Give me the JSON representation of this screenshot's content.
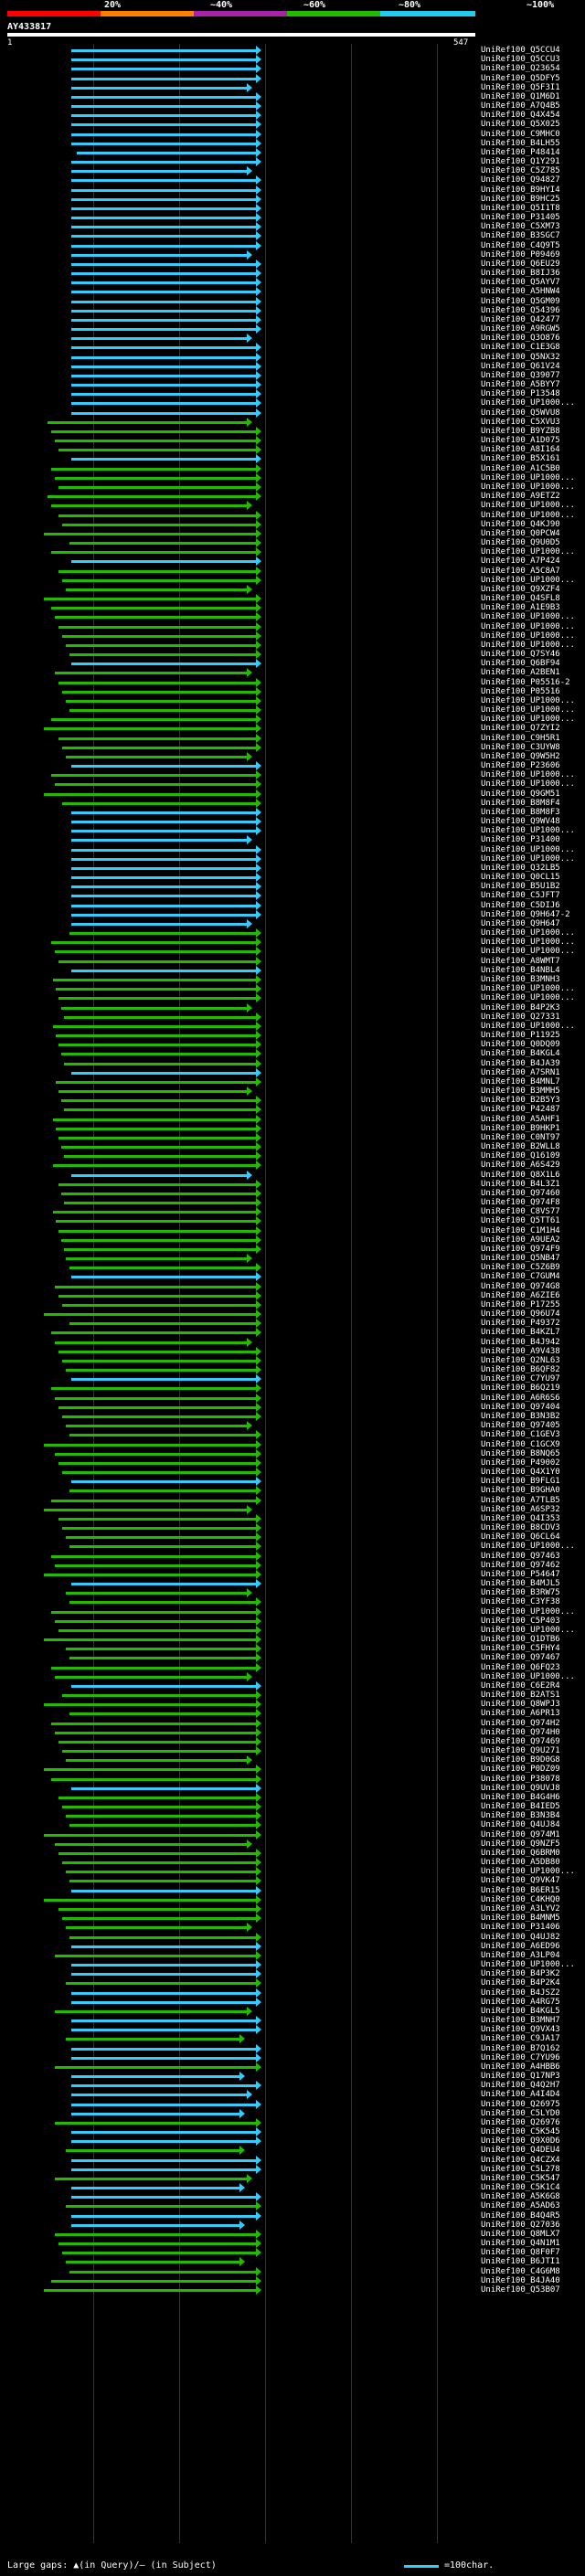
{
  "scale": {
    "labels": [
      "20%",
      "~40%",
      "~60%",
      "~80%",
      "~100%"
    ],
    "segment_colors": [
      "#ff0000",
      "#ff8000",
      "#aa22aa",
      "#22bb00",
      "#22ccee"
    ]
  },
  "query": {
    "name": "AY433817",
    "start": "1",
    "end": "547"
  },
  "colors": {
    "blue": "#33ccff",
    "green": "#22bb00",
    "grid": "#333333"
  },
  "hits": [
    "UniRef100_Q5CCU4",
    "UniRef100_Q5CCU3",
    "UniRef100_Q23654",
    "UniRef100_Q5DFY5",
    "UniRef100_Q5F3I1",
    "UniRef100_Q1M6D1",
    "UniRef100_A7Q4B5",
    "UniRef100_Q4X454",
    "UniRef100_Q5X025",
    "UniRef100_C9MHC0",
    "UniRef100_B4LH55",
    "UniRef100_P48414",
    "UniRef100_Q1Y291",
    "UniRef100_C5Z785",
    "UniRef100_Q94827",
    "UniRef100_B9HYI4",
    "UniRef100_B9HC25",
    "UniRef100_Q5I1T8",
    "UniRef100_P31405",
    "UniRef100_C5XM73",
    "UniRef100_B3SGC7",
    "UniRef100_C4Q9T5",
    "UniRef100_P09469",
    "UniRef100_Q6EU29",
    "UniRef100_B8IJ36",
    "UniRef100_Q5AYV7",
    "UniRef100_A5HNW4",
    "UniRef100_Q5GM09",
    "UniRef100_Q54396",
    "UniRef100_Q42477",
    "UniRef100_A9RGW5",
    "UniRef100_Q3O876",
    "UniRef100_C1E3G8",
    "UniRef100_Q5NX32",
    "UniRef100_Q61V24",
    "UniRef100_Q39077",
    "UniRef100_A5BYY7",
    "UniRef100_P13548",
    "UniRef100_UP1000...",
    "UniRef100_Q5WVU8",
    "UniRef100_C5XVU3",
    "UniRef100_B9YZB8",
    "UniRef100_A1D075",
    "UniRef100_A8I164",
    "UniRef100_B5X161",
    "UniRef100_A1C5B0",
    "UniRef100_UP1000...",
    "UniRef100_UP1000...",
    "UniRef100_A9ETZ2",
    "UniRef100_UP1000...",
    "UniRef100_UP1000...",
    "UniRef100_Q4KJ90",
    "UniRef100_Q0PCW4",
    "UniRef100_Q9U0D5",
    "UniRef100_UP1000...",
    "UniRef100_A7P424",
    "UniRef100_A5C8A7",
    "UniRef100_UP1000...",
    "UniRef100_Q9XZF4",
    "UniRef100_Q4SFL8",
    "UniRef100_A1E9B3",
    "UniRef100_UP1000...",
    "UniRef100_UP1000...",
    "UniRef100_UP1000...",
    "UniRef100_UP1000...",
    "UniRef100_Q7SY46",
    "UniRef100_Q6BF94",
    "UniRef100_A2BEN1",
    "UniRef100_P05516-2",
    "UniRef100_P05516",
    "UniRef100_UP1000...",
    "UniRef100_UP1000...",
    "UniRef100_UP1000...",
    "UniRef100_Q7ZYI2",
    "UniRef100_C9H5R1",
    "UniRef100_C3UYW8",
    "UniRef100_Q9W5H2",
    "UniRef100_P23606",
    "UniRef100_UP1000...",
    "UniRef100_UP1000...",
    "UniRef100_Q9GM51",
    "UniRef100_B8M8F4",
    "UniRef100_B8M8F3",
    "UniRef100_Q9WV48",
    "UniRef100_UP1000...",
    "UniRef100_P31400",
    "UniRef100_UP1000...",
    "UniRef100_UP1000...",
    "UniRef100_Q32LB5",
    "UniRef100_Q0CL15",
    "UniRef100_B5U1B2",
    "UniRef100_C5JFT7",
    "UniRef100_C5DIJ6",
    "UniRef100_Q9H647-2",
    "UniRef100_Q9H647",
    "UniRef100_UP1000...",
    "UniRef100_UP1000...",
    "UniRef100_UP1000...",
    "UniRef100_A8WMT7",
    "UniRef100_B4NBL4",
    "UniRef100_B3MNH3",
    "UniRef100_UP1000...",
    "UniRef100_UP1000...",
    "UniRef100_B4P2K3",
    "UniRef100_Q27331",
    "UniRef100_UP1000...",
    "UniRef100_P11925",
    "UniRef100_Q0DQ09",
    "UniRef100_B4KGL4",
    "UniRef100_B4JA39",
    "UniRef100_A7SRN1",
    "UniRef100_B4MNL7",
    "UniRef100_B3MMH5",
    "UniRef100_B2B5Y3",
    "UniRef100_P42487",
    "UniRef100_A5AHF1",
    "UniRef100_B9HKP1",
    "UniRef100_C0NT97",
    "UniRef100_B2WLL8",
    "UniRef100_Q16109",
    "UniRef100_A6S429",
    "UniRef100_Q8X1L6",
    "UniRef100_B4L3Z1",
    "UniRef100_Q97460",
    "UniRef100_Q974F8",
    "UniRef100_C8VS77",
    "UniRef100_Q5TT61",
    "UniRef100_C1M1H4",
    "UniRef100_A9UEA2",
    "UniRef100_Q974F9",
    "UniRef100_Q5NB47",
    "UniRef100_C5Z6B9",
    "UniRef100_C7GUM4",
    "UniRef100_Q974G8",
    "UniRef100_A6ZIE6",
    "UniRef100_P17255",
    "UniRef100_Q96U74",
    "UniRef100_P49372",
    "UniRef100_B4KZL7",
    "UniRef100_B4J942",
    "UniRef100_A9V438",
    "UniRef100_Q2NL63",
    "UniRef100_B6QF82",
    "UniRef100_C7YU97",
    "UniRef100_B6Q219",
    "UniRef100_A6R6S6",
    "UniRef100_Q97404",
    "UniRef100_B3N3B2",
    "UniRef100_Q97405",
    "UniRef100_C1GEV3",
    "UniRef100_C1GCX9",
    "UniRef100_B8NQ65",
    "UniRef100_P49002",
    "UniRef100_Q4X1Y0",
    "UniRef100_B9FLG1",
    "UniRef100_B9GHA0",
    "UniRef100_A7TLB5",
    "UniRef100_A6SP32",
    "UniRef100_Q4I353",
    "UniRef100_B8CDV3",
    "UniRef100_Q6CL64",
    "UniRef100_UP1000...",
    "UniRef100_Q97463",
    "UniRef100_Q97462",
    "UniRef100_P54647",
    "UniRef100_B4MJL5",
    "UniRef100_B3RW75",
    "UniRef100_C3YF38",
    "UniRef100_UP1000...",
    "UniRef100_C5P403",
    "UniRef100_UP1000...",
    "UniRef100_Q1DTB6",
    "UniRef100_C5FHY4",
    "UniRef100_Q97467",
    "UniRef100_Q6FQ23",
    "UniRef100_UP1000...",
    "UniRef100_C6E2R4",
    "UniRef100_B2ATS1",
    "UniRef100_Q8WPJ3",
    "UniRef100_A6PR13",
    "UniRef100_Q974H2",
    "UniRef100_Q974H0",
    "UniRef100_Q97469",
    "UniRef100_Q9U271",
    "UniRef100_B9D0G8",
    "UniRef100_P0DZ09",
    "UniRef100_P38078",
    "UniRef100_Q9UVJ8",
    "UniRef100_B4G4H6",
    "UniRef100_B4IED5",
    "UniRef100_B3N3B4",
    "UniRef100_Q4UJ84",
    "UniRef100_Q974M1",
    "UniRef100_Q9NZF5",
    "UniRef100_Q6BRM0",
    "UniRef100_A5DB80",
    "UniRef100_UP1000...",
    "UniRef100_Q9VK47",
    "UniRef100_B6ER15",
    "UniRef100_C4KHQ0",
    "UniRef100_A3LYV2",
    "UniRef100_B4MNM5",
    "UniRef100_P31406",
    "UniRef100_Q4UJ82",
    "UniRef100_A6ED96",
    "UniRef100_A3LP04",
    "UniRef100_UP1000...",
    "UniRef100_B4P3K2",
    "UniRef100_B4P2K4",
    "UniRef100_B4JSZ2",
    "UniRef100_A4RG75",
    "UniRef100_B4KGL5",
    "UniRef100_B3MNH7",
    "UniRef100_Q9VX43",
    "UniRef100_C9JA17",
    "UniRef100_B7Q162",
    "UniRef100_C7YU96",
    "UniRef100_A4HBB6",
    "UniRef100_Q17NP3",
    "UniRef100_Q4Q2H7",
    "UniRef100_A4I4D4",
    "UniRef100_Q26975",
    "UniRef100_C5LYD0",
    "UniRef100_Q26976",
    "UniRef100_C5K545",
    "UniRef100_Q9X0D6",
    "UniRef100_Q4DEU4",
    "UniRef100_Q4CZX4",
    "UniRef100_C5L278",
    "UniRef100_C5K547",
    "UniRef100_C5K1C4",
    "UniRef100_A5K6G8",
    "UniRef100_A5AD63",
    "UniRef100_B4Q4R5",
    "UniRef100_Q27036",
    "UniRef100_Q8MLX7",
    "UniRef100_Q4N1M1",
    "UniRef100_Q8F0F7",
    "UniRef100_B6JTI1",
    "UniRef100_C4G6M8",
    "UniRef100_B4JA40",
    "UniRef100_Q53B07"
  ],
  "footer": {
    "legend_text": "Large gaps: ▲(in Query)/– (in Subject)",
    "scale_text": "=100char."
  }
}
